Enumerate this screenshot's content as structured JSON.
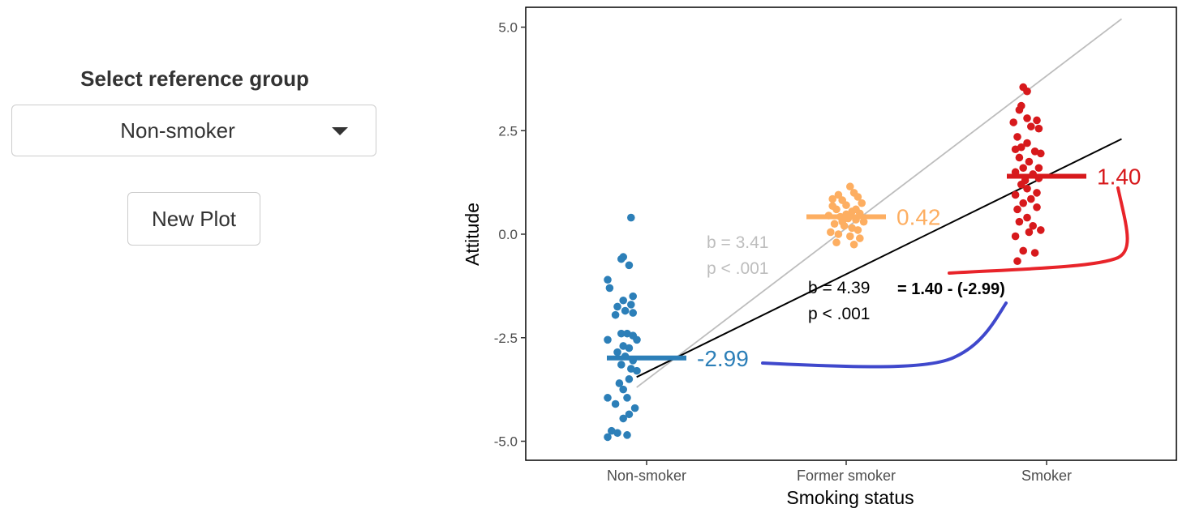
{
  "sidebar": {
    "select_label": "Select reference group",
    "selected_value": "Non-smoker",
    "button_label": "New Plot"
  },
  "colors": {
    "non_smoker": "#2c7fb8",
    "former_smoker": "#fdae61",
    "smoker": "#d7191c",
    "overall_line": "#000000",
    "reference_line": "#bdbdbd",
    "arrow_blue": "#3f48cc",
    "arrow_red": "#e8242a"
  },
  "chart_data": {
    "type": "scatter",
    "xlabel": "Smoking status",
    "ylabel": "Attitude",
    "categories": [
      "Non-smoker",
      "Former smoker",
      "Smoker"
    ],
    "ylim": [
      -5.5,
      5.5
    ],
    "y_ticks": [
      "5.0",
      "2.5",
      "0.0",
      "-2.5",
      "-5.0"
    ],
    "y_tick_values": [
      5.0,
      2.5,
      0.0,
      -2.5,
      -5.0
    ],
    "grid": false,
    "legend": "none",
    "group_means": [
      {
        "category": "Non-smoker",
        "value": -2.99,
        "label": "-2.99"
      },
      {
        "category": "Former smoker",
        "value": 0.42,
        "label": "0.42"
      },
      {
        "category": "Smoker",
        "value": 1.4,
        "label": "1.40"
      }
    ],
    "series": [
      {
        "category": "Non-smoker",
        "points": [
          [
            -0.08,
            0.4
          ],
          [
            -0.13,
            -0.6
          ],
          [
            -0.12,
            -0.55
          ],
          [
            -0.09,
            -0.75
          ],
          [
            -0.2,
            -1.1
          ],
          [
            -0.19,
            -1.3
          ],
          [
            -0.07,
            -1.5
          ],
          [
            -0.12,
            -1.6
          ],
          [
            -0.08,
            -1.7
          ],
          [
            -0.15,
            -1.75
          ],
          [
            -0.11,
            -1.85
          ],
          [
            -0.07,
            -1.9
          ],
          [
            -0.16,
            -1.95
          ],
          [
            -0.2,
            -2.55
          ],
          [
            -0.13,
            -2.4
          ],
          [
            -0.1,
            -2.4
          ],
          [
            -0.07,
            -2.45
          ],
          [
            -0.05,
            -2.55
          ],
          [
            -0.12,
            -2.7
          ],
          [
            -0.09,
            -2.75
          ],
          [
            -0.15,
            -2.85
          ],
          [
            -0.11,
            -2.95
          ],
          [
            -0.07,
            -3.05
          ],
          [
            -0.13,
            -3.15
          ],
          [
            -0.05,
            -3.3
          ],
          [
            -0.09,
            -3.5
          ],
          [
            -0.14,
            -3.6
          ],
          [
            -0.12,
            -3.75
          ],
          [
            -0.2,
            -3.95
          ],
          [
            -0.16,
            -4.1
          ],
          [
            -0.1,
            -3.95
          ],
          [
            -0.06,
            -4.2
          ],
          [
            -0.09,
            -4.35
          ],
          [
            -0.12,
            -4.45
          ],
          [
            -0.18,
            -4.75
          ],
          [
            -0.15,
            -4.8
          ],
          [
            -0.1,
            -4.85
          ],
          [
            -0.2,
            -4.9
          ],
          [
            -0.08,
            -3.25
          ]
        ]
      },
      {
        "category": "Former smoker",
        "points": [
          [
            0.02,
            1.15
          ],
          [
            0.04,
            1.0
          ],
          [
            -0.04,
            0.95
          ],
          [
            0.06,
            0.9
          ],
          [
            -0.07,
            0.85
          ],
          [
            -0.02,
            0.82
          ],
          [
            0.08,
            0.75
          ],
          [
            0.0,
            0.7
          ],
          [
            -0.05,
            0.6
          ],
          [
            0.03,
            0.55
          ],
          [
            0.07,
            0.5
          ],
          [
            -0.09,
            0.45
          ],
          [
            -0.03,
            0.42
          ],
          [
            0.01,
            0.38
          ],
          [
            0.05,
            0.35
          ],
          [
            0.09,
            0.3
          ],
          [
            -0.06,
            0.25
          ],
          [
            -0.01,
            0.2
          ],
          [
            0.03,
            0.15
          ],
          [
            0.06,
            0.1
          ],
          [
            -0.08,
            0.05
          ],
          [
            -0.04,
            0.0
          ],
          [
            0.02,
            -0.05
          ],
          [
            0.07,
            -0.1
          ],
          [
            -0.05,
            -0.2
          ],
          [
            0.04,
            -0.25
          ],
          [
            0.0,
            0.48
          ],
          [
            -0.02,
            0.3
          ],
          [
            0.05,
            0.6
          ],
          [
            -0.07,
            0.68
          ]
        ]
      },
      {
        "category": "Smoker",
        "points": [
          [
            -0.12,
            3.55
          ],
          [
            -0.1,
            3.45
          ],
          [
            -0.13,
            3.1
          ],
          [
            -0.14,
            3.0
          ],
          [
            -0.05,
            2.75
          ],
          [
            -0.1,
            2.8
          ],
          [
            -0.17,
            2.7
          ],
          [
            -0.08,
            2.6
          ],
          [
            -0.04,
            2.55
          ],
          [
            -0.15,
            2.35
          ],
          [
            -0.1,
            2.2
          ],
          [
            -0.13,
            2.1
          ],
          [
            -0.16,
            2.05
          ],
          [
            -0.06,
            2.0
          ],
          [
            -0.03,
            1.95
          ],
          [
            -0.14,
            1.85
          ],
          [
            -0.09,
            1.75
          ],
          [
            -0.12,
            1.6
          ],
          [
            -0.16,
            1.5
          ],
          [
            -0.07,
            1.45
          ],
          [
            -0.04,
            1.35
          ],
          [
            -0.13,
            1.2
          ],
          [
            -0.1,
            1.1
          ],
          [
            -0.05,
            1.0
          ],
          [
            -0.16,
            0.95
          ],
          [
            -0.08,
            0.85
          ],
          [
            -0.12,
            0.75
          ],
          [
            -0.15,
            0.6
          ],
          [
            -0.05,
            0.65
          ],
          [
            -0.1,
            0.4
          ],
          [
            -0.14,
            0.3
          ],
          [
            -0.07,
            0.2
          ],
          [
            -0.03,
            0.1
          ],
          [
            -0.09,
            0.05
          ],
          [
            -0.16,
            -0.05
          ],
          [
            -0.12,
            -0.4
          ],
          [
            -0.06,
            -0.45
          ],
          [
            -0.15,
            -0.65
          ],
          [
            -0.04,
            1.6
          ],
          [
            -0.11,
            1.3
          ]
        ]
      }
    ],
    "lines": [
      {
        "name": "",
        "color_key": "reference_line",
        "from": [
          0.95,
          -3.7
        ],
        "to": [
          3.38,
          5.2
        ]
      },
      {
        "name": "",
        "color_key": "overall_line",
        "from": [
          0.95,
          -3.45
        ],
        "to": [
          3.38,
          2.3
        ]
      }
    ],
    "annotations": {
      "ref_b": "b = 3.41",
      "ref_p": "p < .001",
      "main_b": "b = 4.39",
      "main_p": "p < .001",
      "diff": "= 1.40 - (-2.99)"
    }
  }
}
